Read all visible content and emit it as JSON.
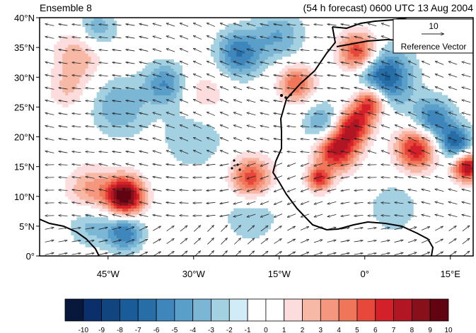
{
  "header": {
    "left_title": "Ensemble 8",
    "right_title": "(54 h forecast) 0600 UTC 13 Aug 2004"
  },
  "map": {
    "lon_range": [
      -57,
      19
    ],
    "lat_range": [
      0,
      40
    ],
    "lat_ticks": [
      {
        "value": 40,
        "label": "40°N"
      },
      {
        "value": 35,
        "label": "35°N"
      },
      {
        "value": 30,
        "label": "30°N"
      },
      {
        "value": 25,
        "label": "25°N"
      },
      {
        "value": 20,
        "label": "20°N"
      },
      {
        "value": 15,
        "label": "15°N"
      },
      {
        "value": 10,
        "label": "10°N"
      },
      {
        "value": 5,
        "label": "5°N"
      },
      {
        "value": 0,
        "label": "0°"
      }
    ],
    "lon_ticks": [
      {
        "value": -45,
        "label": "45°W"
      },
      {
        "value": -30,
        "label": "30°W"
      },
      {
        "value": -15,
        "label": "15°W"
      },
      {
        "value": 0,
        "label": "0°"
      },
      {
        "value": 15,
        "label": "15°E"
      }
    ],
    "features": [
      {
        "lon": -42,
        "lat": 10,
        "value": 10,
        "spread": 2.3
      },
      {
        "lon": -48,
        "lat": 10.5,
        "value": 4,
        "spread": 3
      },
      {
        "lon": -5,
        "lat": 18,
        "value": 8,
        "spread": 2.5
      },
      {
        "lon": -2,
        "lat": 22,
        "value": 7,
        "spread": 2.2
      },
      {
        "lon": 1,
        "lat": 26,
        "value": 8,
        "spread": 2
      },
      {
        "lon": -8,
        "lat": 13,
        "value": 6,
        "spread": 1.5
      },
      {
        "lon": -20,
        "lat": 13,
        "value": 6,
        "spread": 2.5
      },
      {
        "lon": -12,
        "lat": 29,
        "value": 5,
        "spread": 2.2
      },
      {
        "lon": -1,
        "lat": 34,
        "value": 7,
        "spread": 2.5
      },
      {
        "lon": 9,
        "lat": 18,
        "value": 7,
        "spread": 2.5
      },
      {
        "lon": 18,
        "lat": 15,
        "value": 8,
        "spread": 1.8
      },
      {
        "lon": -50,
        "lat": 34,
        "value": 3,
        "spread": 3
      },
      {
        "lon": -52,
        "lat": 28,
        "value": 2,
        "spread": 2.5
      },
      {
        "lon": -28,
        "lat": 27,
        "value": 2,
        "spread": 3
      },
      {
        "lon": 3,
        "lat": 30,
        "value": -7,
        "spread": 3.5
      },
      {
        "lon": -7,
        "lat": 22,
        "value": -4,
        "spread": 2.5
      },
      {
        "lon": 12,
        "lat": 23,
        "value": -5,
        "spread": 2.5
      },
      {
        "lon": 16,
        "lat": 19,
        "value": -6,
        "spread": 2
      },
      {
        "lon": -35,
        "lat": 29,
        "value": -4,
        "spread": 2.5
      },
      {
        "lon": -22,
        "lat": 34,
        "value": -5,
        "spread": 2.8
      },
      {
        "lon": -43,
        "lat": 25,
        "value": -3,
        "spread": 3.5
      },
      {
        "lon": -47,
        "lat": 38,
        "value": -3,
        "spread": 2.5
      },
      {
        "lon": -30,
        "lat": 20,
        "value": -2,
        "spread": 4
      },
      {
        "lon": -42,
        "lat": 4,
        "value": -5,
        "spread": 2.2
      },
      {
        "lon": -48,
        "lat": 6,
        "value": -3,
        "spread": 3
      },
      {
        "lon": -20,
        "lat": 7,
        "value": -2,
        "spread": 3.5
      },
      {
        "lon": 5,
        "lat": 8,
        "value": -2,
        "spread": 3
      },
      {
        "lon": -15,
        "lat": 37,
        "value": -3,
        "spread": 3
      }
    ]
  },
  "reference_vector": {
    "magnitude": "10",
    "label": "Reference Vector"
  },
  "colorbar": {
    "levels": [
      "-10",
      "-9",
      "-8",
      "-7",
      "-6",
      "-5",
      "-4",
      "-3",
      "-2",
      "-1",
      "0",
      "1",
      "2",
      "3",
      "4",
      "5",
      "6",
      "7",
      "8",
      "9",
      "10"
    ],
    "colors": [
      "#08183c",
      "#0a2f6b",
      "#11457f",
      "#1a5c9a",
      "#276ea7",
      "#3e86bb",
      "#5a9fca",
      "#7cb6d5",
      "#a4d1e2",
      "#d2ecf7",
      "#ffffff",
      "#ffffff",
      "#fcdcdc",
      "#f8b8a6",
      "#f5977f",
      "#f07659",
      "#e7483a",
      "#d32029",
      "#b11622",
      "#88101a",
      "#620312"
    ]
  }
}
